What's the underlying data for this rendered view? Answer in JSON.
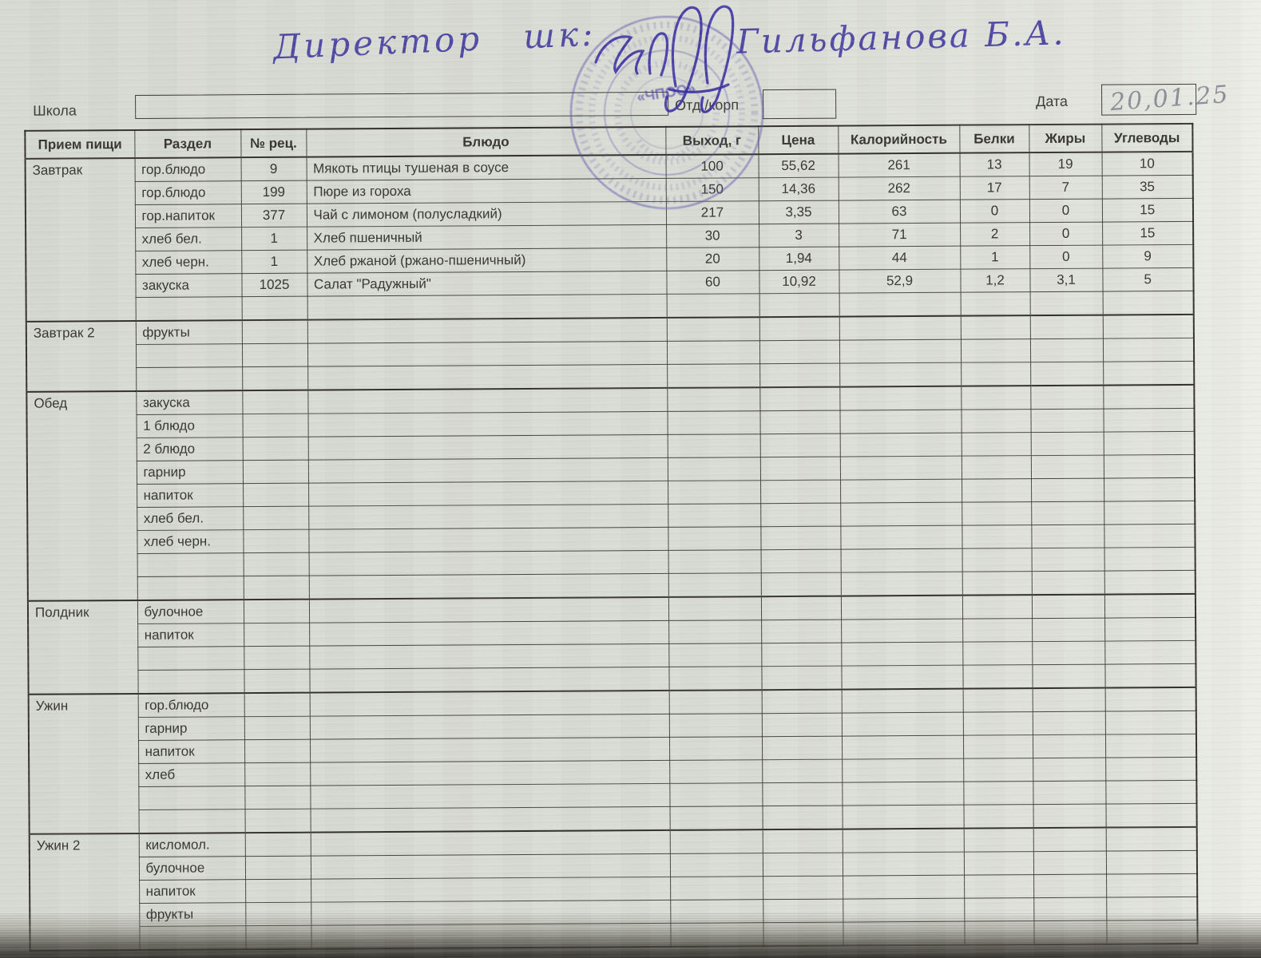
{
  "signature_line": {
    "prefix": "Директор  шк:",
    "name": "Гильфанова Б.А."
  },
  "stamp": {
    "center_text": "«ЧПОО»"
  },
  "fields": {
    "school_label": "Школа",
    "school_value": "",
    "dept_label": "Отд./корп",
    "dept_value": "",
    "date_label": "Дата",
    "date_value": "20,01.25"
  },
  "table": {
    "headers": [
      "Прием пищи",
      "Раздел",
      "№ рец.",
      "Блюдо",
      "Выход, г",
      "Цена",
      "Калорийность",
      "Белки",
      "Жиры",
      "Углеводы"
    ],
    "sections": [
      {
        "meal": "Завтрак",
        "rows": [
          [
            "гор.блюдо",
            "9",
            "Мякоть птицы тушеная в соусе",
            "100",
            "55,62",
            "261",
            "13",
            "19",
            "10"
          ],
          [
            "гор.блюдо",
            "199",
            "Пюре из гороха",
            "150",
            "14,36",
            "262",
            "17",
            "7",
            "35"
          ],
          [
            "гор.напиток",
            "377",
            "Чай с лимоном (полусладкий)",
            "217",
            "3,35",
            "63",
            "0",
            "0",
            "15"
          ],
          [
            "хлеб бел.",
            "1",
            "Хлеб пшеничный",
            "30",
            "3",
            "71",
            "2",
            "0",
            "15"
          ],
          [
            "хлеб черн.",
            "1",
            "Хлеб ржаной (ржано-пшеничный)",
            "20",
            "1,94",
            "44",
            "1",
            "0",
            "9"
          ],
          [
            "закуска",
            "1025",
            "Салат \"Радужный\"",
            "60",
            "10,92",
            "52,9",
            "1,2",
            "3,1",
            "5"
          ],
          [
            "",
            "",
            "",
            "",
            "",
            "",
            "",
            "",
            ""
          ]
        ]
      },
      {
        "meal": "Завтрак 2",
        "rows": [
          [
            "фрукты",
            "",
            "",
            "",
            "",
            "",
            "",
            "",
            ""
          ],
          [
            "",
            "",
            "",
            "",
            "",
            "",
            "",
            "",
            ""
          ],
          [
            "",
            "",
            "",
            "",
            "",
            "",
            "",
            "",
            ""
          ]
        ]
      },
      {
        "meal": "Обед",
        "rows": [
          [
            "закуска",
            "",
            "",
            "",
            "",
            "",
            "",
            "",
            ""
          ],
          [
            "1 блюдо",
            "",
            "",
            "",
            "",
            "",
            "",
            "",
            ""
          ],
          [
            "2 блюдо",
            "",
            "",
            "",
            "",
            "",
            "",
            "",
            ""
          ],
          [
            "гарнир",
            "",
            "",
            "",
            "",
            "",
            "",
            "",
            ""
          ],
          [
            "напиток",
            "",
            "",
            "",
            "",
            "",
            "",
            "",
            ""
          ],
          [
            "хлеб бел.",
            "",
            "",
            "",
            "",
            "",
            "",
            "",
            ""
          ],
          [
            "хлеб черн.",
            "",
            "",
            "",
            "",
            "",
            "",
            "",
            ""
          ],
          [
            "",
            "",
            "",
            "",
            "",
            "",
            "",
            "",
            ""
          ],
          [
            "",
            "",
            "",
            "",
            "",
            "",
            "",
            "",
            ""
          ]
        ]
      },
      {
        "meal": "Полдник",
        "rows": [
          [
            "булочное",
            "",
            "",
            "",
            "",
            "",
            "",
            "",
            ""
          ],
          [
            "напиток",
            "",
            "",
            "",
            "",
            "",
            "",
            "",
            ""
          ],
          [
            "",
            "",
            "",
            "",
            "",
            "",
            "",
            "",
            ""
          ],
          [
            "",
            "",
            "",
            "",
            "",
            "",
            "",
            "",
            ""
          ]
        ]
      },
      {
        "meal": "Ужин",
        "rows": [
          [
            "гор.блюдо",
            "",
            "",
            "",
            "",
            "",
            "",
            "",
            ""
          ],
          [
            "гарнир",
            "",
            "",
            "",
            "",
            "",
            "",
            "",
            ""
          ],
          [
            "напиток",
            "",
            "",
            "",
            "",
            "",
            "",
            "",
            ""
          ],
          [
            "хлеб",
            "",
            "",
            "",
            "",
            "",
            "",
            "",
            ""
          ],
          [
            "",
            "",
            "",
            "",
            "",
            "",
            "",
            "",
            ""
          ],
          [
            "",
            "",
            "",
            "",
            "",
            "",
            "",
            "",
            ""
          ]
        ]
      },
      {
        "meal": "Ужин 2",
        "rows": [
          [
            "кисломол.",
            "",
            "",
            "",
            "",
            "",
            "",
            "",
            ""
          ],
          [
            "булочное",
            "",
            "",
            "",
            "",
            "",
            "",
            "",
            ""
          ],
          [
            "напиток",
            "",
            "",
            "",
            "",
            "",
            "",
            "",
            ""
          ],
          [
            "фрукты",
            "",
            "",
            "",
            "",
            "",
            "",
            "",
            ""
          ],
          [
            "",
            "",
            "",
            "",
            "",
            "",
            "",
            "",
            ""
          ]
        ]
      }
    ]
  }
}
